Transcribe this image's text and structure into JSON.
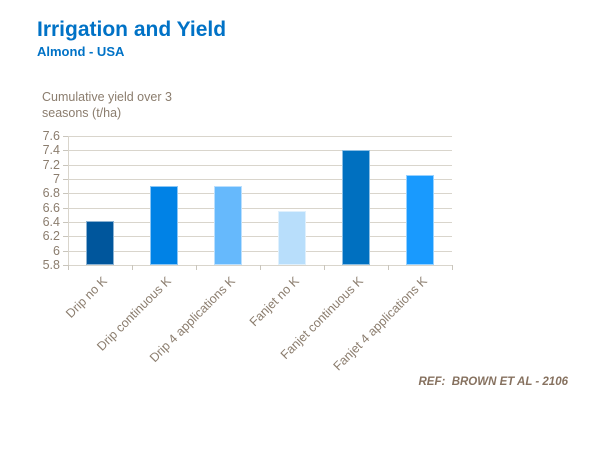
{
  "header": {
    "title": "Irrigation and Yield",
    "subtitle": "Almond - USA",
    "title_color": "#0072C6"
  },
  "chart_data": {
    "type": "bar",
    "title": "Irrigation and Yield",
    "subtitle": "Almond - USA",
    "ylabel": "Cumulative yield over 3 seasons (t/ha)",
    "xlabel": "",
    "categories": [
      "Drip no K",
      "Drip continuous K",
      "Drip 4 applications K",
      "Fanjet no K",
      "Fanjet continuous K",
      "Fanjet 4 applications K"
    ],
    "values": [
      6.42,
      6.9,
      6.9,
      6.55,
      7.4,
      7.05
    ],
    "bar_colors": [
      "#00569C",
      "#0082E6",
      "#66B9FC",
      "#B8DEFB",
      "#0070C0",
      "#199AFE"
    ],
    "ylim": [
      5.8,
      7.6
    ],
    "ytick_interval": 0.2,
    "ytick_labels": [
      "5.8",
      "6",
      "6.2",
      "6.4",
      "6.6",
      "6.8",
      "7",
      "7.2",
      "7.4",
      "7.6"
    ],
    "grid": true,
    "gridline_color": "#D9D5CC",
    "tick_label_color": "#8B7D6E",
    "legend": "none"
  },
  "footer": {
    "ref": "REF:  BROWN ET AL - 2106"
  }
}
